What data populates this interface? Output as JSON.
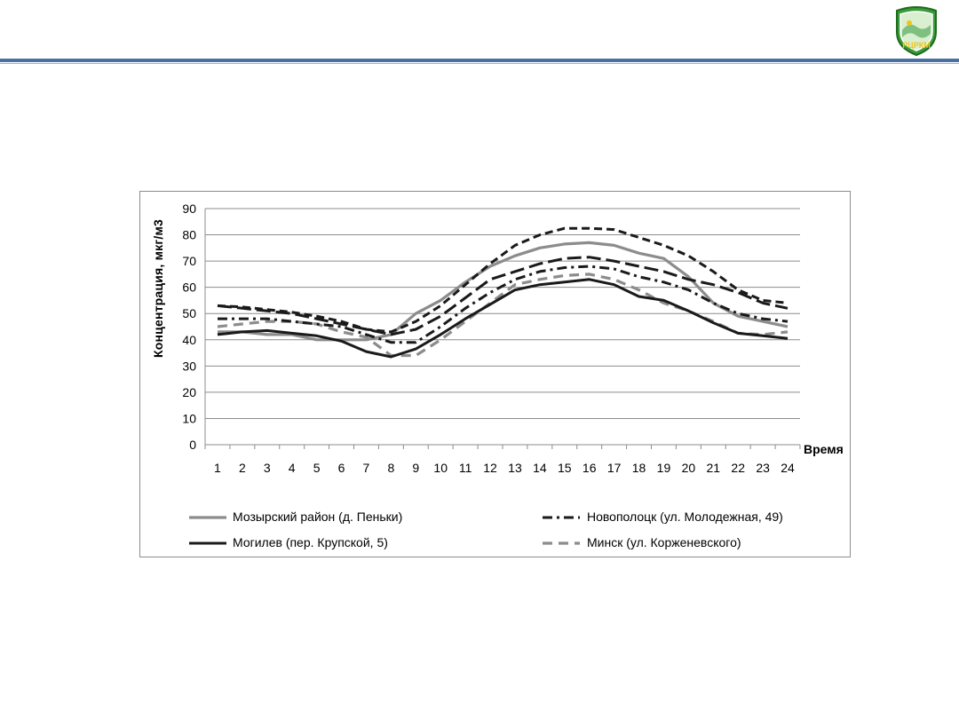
{
  "logo": {
    "text": "РЦРКМ",
    "icon": "rcrkm-logo-icon",
    "color": "#3a9b3a"
  },
  "chart_data": {
    "type": "line",
    "title": "",
    "xlabel": "Время",
    "ylabel": "Концентрация, мкг/м3",
    "x": [
      1,
      2,
      3,
      4,
      5,
      6,
      7,
      8,
      9,
      10,
      11,
      12,
      13,
      14,
      15,
      16,
      17,
      18,
      19,
      20,
      21,
      22,
      23,
      24
    ],
    "ylim": [
      0,
      90
    ],
    "yticks": [
      0,
      10,
      20,
      30,
      40,
      50,
      60,
      70,
      80,
      90
    ],
    "grid": true,
    "legend_position": "bottom",
    "series": [
      {
        "name": "Мозырский район (д. Пеньки)",
        "style": "solid-gray",
        "color": "#8c8c8c",
        "values": [
          43,
          43,
          42,
          42,
          40,
          40,
          40,
          42,
          50,
          55,
          62,
          68,
          72,
          75,
          76.5,
          77,
          76,
          73,
          71,
          64,
          54,
          49,
          47,
          45
        ]
      },
      {
        "name": "Новополоцк (ул. Молодежная, 49)",
        "style": "dash-dot-black",
        "color": "#000000",
        "values": [
          48,
          48,
          48,
          47,
          46,
          45,
          42,
          39,
          39,
          45,
          52,
          58,
          63,
          66,
          67.5,
          68,
          67,
          64,
          62,
          59,
          54,
          50,
          48,
          47
        ]
      },
      {
        "name": "Могилев (пер. Крупской, 5)",
        "style": "solid-black",
        "color": "#1a1a1a",
        "values": [
          42,
          43,
          43.5,
          42.5,
          41.5,
          39.5,
          35.5,
          33.5,
          36.5,
          42,
          48,
          53.5,
          59,
          61,
          62,
          63,
          61,
          56.5,
          55,
          51,
          46.5,
          42.5,
          41.5,
          40.5
        ]
      },
      {
        "name": "Минск (ул. Корженевского)",
        "style": "dashed-gray",
        "color": "#8c8c8c",
        "values": [
          45,
          46,
          47,
          47,
          46,
          43,
          41,
          34,
          34,
          40,
          47,
          54,
          61,
          63,
          64.5,
          65,
          63,
          59,
          54,
          51,
          47,
          42.5,
          42,
          43
        ]
      },
      {
        "name": "",
        "style": "dashed-black",
        "color": "#1a1a1a",
        "values": [
          53,
          52.5,
          51.5,
          50.5,
          49,
          47,
          44,
          43,
          47,
          53,
          61,
          69,
          76,
          80,
          82.5,
          82.5,
          82,
          79,
          76,
          72,
          66,
          59,
          55,
          54
        ]
      },
      {
        "name": "",
        "style": "long-dash-black",
        "color": "#1a1a1a",
        "values": [
          53,
          52,
          51,
          50,
          48,
          46,
          44,
          42,
          44,
          49,
          56,
          63,
          66,
          69,
          71,
          71.5,
          70,
          68,
          66,
          63,
          61,
          58,
          54,
          52
        ]
      }
    ]
  }
}
